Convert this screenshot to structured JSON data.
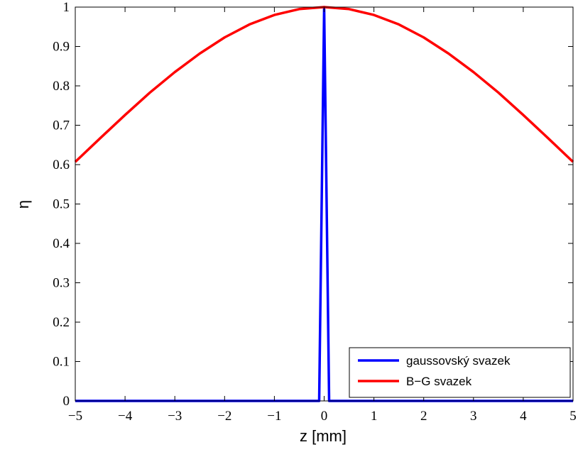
{
  "chart_data": {
    "type": "line",
    "xlabel": "z [mm]",
    "ylabel": "η",
    "xlim": [
      -5,
      5
    ],
    "ylim": [
      0,
      1
    ],
    "xticks": [
      -5,
      -4,
      -3,
      -2,
      -1,
      0,
      1,
      2,
      3,
      4,
      5
    ],
    "xtick_labels": [
      "−5",
      "−4",
      "−3",
      "−2",
      "−1",
      "0",
      "1",
      "2",
      "3",
      "4",
      "5"
    ],
    "yticks": [
      0,
      0.1,
      0.2,
      0.3,
      0.4,
      0.5,
      0.6,
      0.7,
      0.8,
      0.9,
      1
    ],
    "ytick_labels": [
      "0",
      "0.1",
      "0.2",
      "0.3",
      "0.4",
      "0.5",
      "0.6",
      "0.7",
      "0.8",
      "0.9",
      "1"
    ],
    "grid": false,
    "legend_position": "bottom-right",
    "series": [
      {
        "name": "gaussovský svazek",
        "color": "#0000ff",
        "x": [
          -5,
          -0.1,
          0,
          0.1,
          5
        ],
        "y": [
          0,
          0,
          1,
          0,
          0
        ]
      },
      {
        "name": "B−G svazek",
        "color": "#ff0000",
        "x": [
          -5,
          -4.5,
          -4,
          -3.5,
          -3,
          -2.5,
          -2,
          -1.5,
          -1,
          -0.5,
          0,
          0.5,
          1,
          1.5,
          2,
          2.5,
          3,
          3.5,
          4,
          4.5,
          5
        ],
        "y": [
          0.607,
          0.667,
          0.726,
          0.783,
          0.835,
          0.882,
          0.923,
          0.956,
          0.98,
          0.995,
          1,
          0.995,
          0.98,
          0.956,
          0.923,
          0.882,
          0.835,
          0.783,
          0.726,
          0.667,
          0.607
        ]
      }
    ]
  }
}
